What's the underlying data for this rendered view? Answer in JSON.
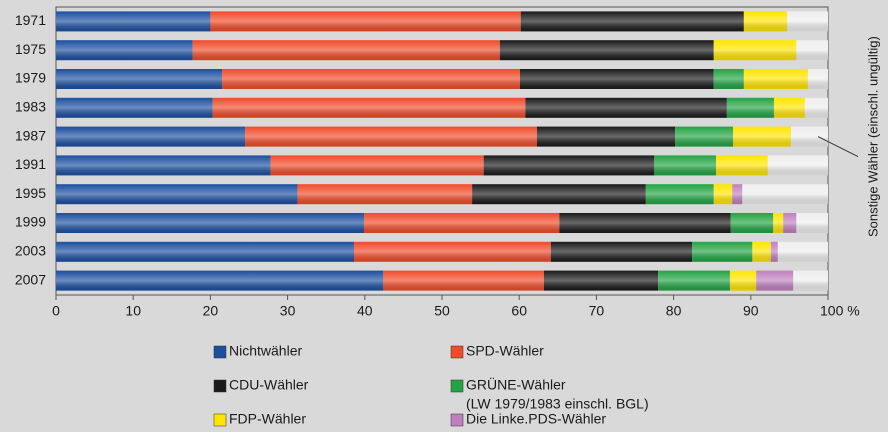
{
  "chart_data": {
    "type": "stacked_bar_horizontal",
    "categories": [
      "1971",
      "1975",
      "1979",
      "1983",
      "1987",
      "1991",
      "1995",
      "1999",
      "2003",
      "2007"
    ],
    "series": [
      {
        "name": "Nichtwähler",
        "color": "#1c4fa0",
        "values": [
          20,
          17.7,
          21.5,
          20.3,
          24.5,
          27.8,
          31.3,
          39.9,
          38.6,
          42.4
        ]
      },
      {
        "name": "SPD-Wähler",
        "color": "#f04a28",
        "values": [
          40.2,
          39.8,
          38.6,
          40.5,
          37.8,
          27.6,
          22.6,
          25.3,
          25.5,
          20.8
        ]
      },
      {
        "name": "CDU-Wähler",
        "color": "#1a1a1a",
        "values": [
          28.9,
          27.7,
          25.1,
          26.1,
          17.9,
          22.1,
          22.5,
          22.2,
          18.3,
          14.8
        ]
      },
      {
        "name": "GRÜNE-Wähler",
        "color": "#22a443",
        "values": [
          0,
          0,
          3.9,
          6.1,
          7.5,
          8.0,
          8.8,
          5.5,
          7.8,
          9.3
        ]
      },
      {
        "name": "FDP-Wähler",
        "color": "#ffe500",
        "values": [
          5.6,
          10.7,
          8.3,
          4.0,
          7.5,
          6.7,
          2.4,
          1.3,
          2.4,
          3.4
        ]
      },
      {
        "name": "Die Linke.PDS-Wähler",
        "color": "#c080c0",
        "values": [
          0,
          0,
          0,
          0,
          0,
          0,
          1.3,
          1.7,
          0.9,
          4.8
        ]
      },
      {
        "name": "Sonstige Wähler (einschl. ungültig)",
        "color": "#eeeeee",
        "values": [
          5.3,
          4.1,
          2.6,
          3.0,
          4.8,
          7.8,
          11.1,
          4.1,
          6.5,
          4.5
        ]
      }
    ],
    "legend_note": "(LW 1979/1983 einschl. BGL)",
    "xlim": [
      0,
      100
    ],
    "xticks": [
      0,
      10,
      20,
      30,
      40,
      50,
      60,
      70,
      80,
      90,
      {
        "value": 100,
        "label": "100 %"
      }
    ],
    "grid": false
  }
}
